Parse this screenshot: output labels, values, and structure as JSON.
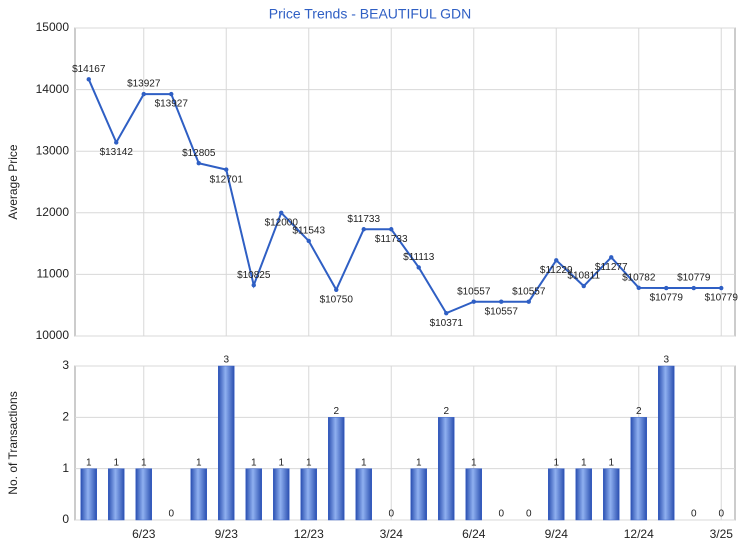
{
  "chart_data": [
    {
      "type": "line",
      "title": "Price Trends - BEAUTIFUL GDN",
      "y_label": "Average Price",
      "values": [
        14167,
        13142,
        13927,
        13927,
        12805,
        12701,
        10825,
        12000,
        11543,
        10750,
        11733,
        11733,
        11113,
        10371,
        10557,
        10557,
        10557,
        11229,
        10811,
        11277,
        10782,
        10779,
        10779,
        10779
      ],
      "value_labels": [
        "$14167",
        "$13142",
        "$13927",
        "$13927",
        "$12805",
        "$12701",
        "$10825",
        "$12000",
        "$11543",
        "$10750",
        "$11733",
        "$11733",
        "$11113",
        "$10371",
        "$10557",
        "$10557",
        "$10557",
        "$11229",
        "$10811",
        "$11277",
        "$10782",
        "$10779",
        "$10779",
        "$10779"
      ],
      "color": "#2f5fc4",
      "ylim": [
        10000,
        15000
      ],
      "yticks": [
        10000,
        11000,
        12000,
        13000,
        14000,
        15000
      ],
      "grid": true
    },
    {
      "type": "bar",
      "y_label": "No. of Transactions",
      "categories": [
        null,
        null,
        "6/23",
        null,
        null,
        "9/23",
        null,
        null,
        "12/23",
        null,
        null,
        "3/24",
        null,
        null,
        "6/24",
        null,
        null,
        "9/24",
        null,
        null,
        "12/24",
        null,
        null,
        "3/25"
      ],
      "values": [
        1,
        1,
        1,
        0,
        1,
        3,
        1,
        1,
        1,
        2,
        1,
        0,
        1,
        2,
        1,
        0,
        0,
        1,
        1,
        1,
        2,
        3,
        0,
        0
      ],
      "color": "#3a62c8",
      "ylim": [
        0,
        3
      ],
      "yticks": [
        0,
        1,
        2,
        3
      ],
      "grid": true
    }
  ]
}
